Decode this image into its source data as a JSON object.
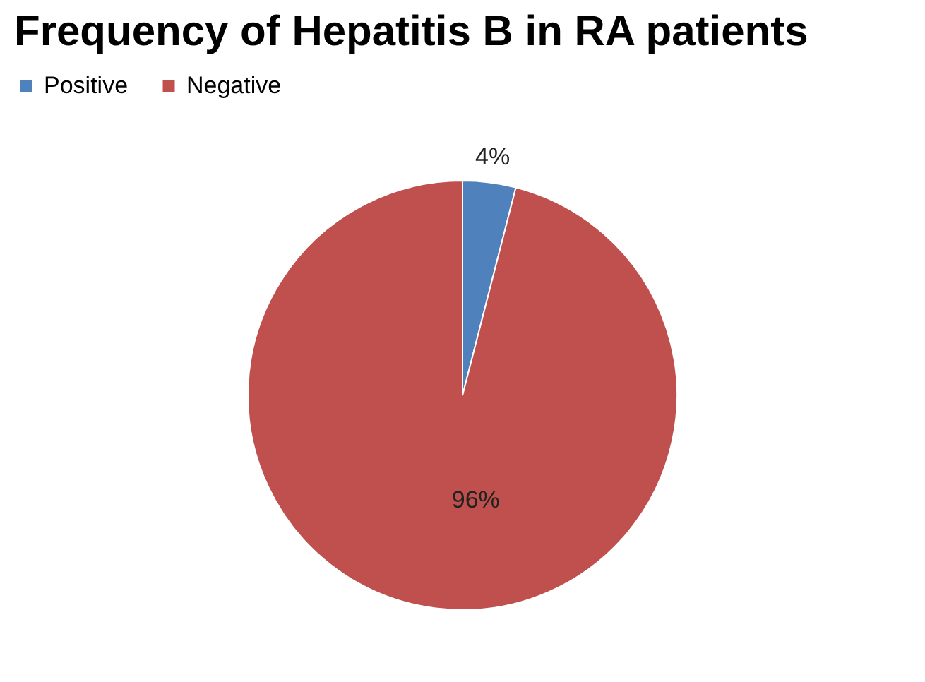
{
  "chart_data": {
    "type": "pie",
    "title": "Frequency of Hepatitis B in RA patients",
    "categories": [
      "Positive",
      "Negative"
    ],
    "values": [
      4,
      96
    ],
    "colors": [
      "#4f81bd",
      "#c0504d"
    ],
    "value_labels": [
      "4%",
      "96%"
    ],
    "legend": "top"
  }
}
